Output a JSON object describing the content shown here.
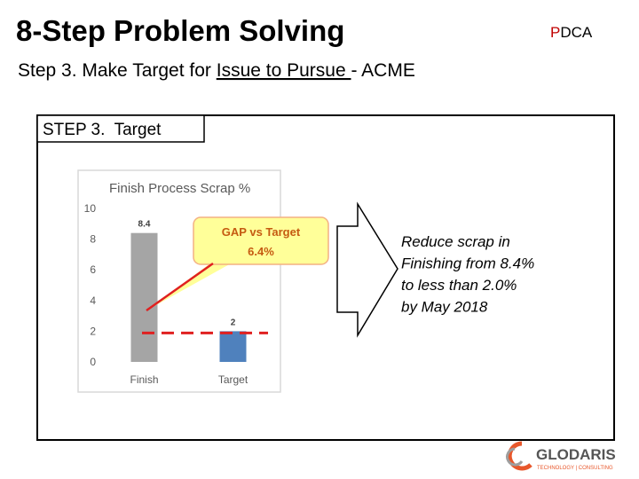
{
  "header": {
    "title": "8-Step Problem Solving",
    "pdca": {
      "highlight": "P",
      "rest": "DCA"
    },
    "subtitle": {
      "before": "Step 3. Make Target for ",
      "underlined": "Issue to Pursue ",
      "after": "- ACME"
    }
  },
  "section": {
    "label": "STEP 3.  Target"
  },
  "chart_data": {
    "type": "bar",
    "title": "Finish Process Scrap %",
    "categories": [
      "Finish",
      "Target"
    ],
    "values": [
      8.4,
      2
    ],
    "colors": [
      "#a5a5a5",
      "#4f81bd"
    ],
    "ylim": [
      0,
      10
    ],
    "yticks": [
      0,
      2,
      4,
      6,
      8,
      10
    ],
    "grid": false,
    "annotation": {
      "lines": [
        "GAP vs Target",
        "6.4%"
      ]
    }
  },
  "statement": {
    "lines": [
      "Reduce scrap in",
      "Finishing from 8.4%",
      "to less than 2.0%",
      "by May 2018"
    ]
  },
  "logo": {
    "name": "GLODARIS",
    "tagline": "TECHNOLOGY | CONSULTING"
  }
}
